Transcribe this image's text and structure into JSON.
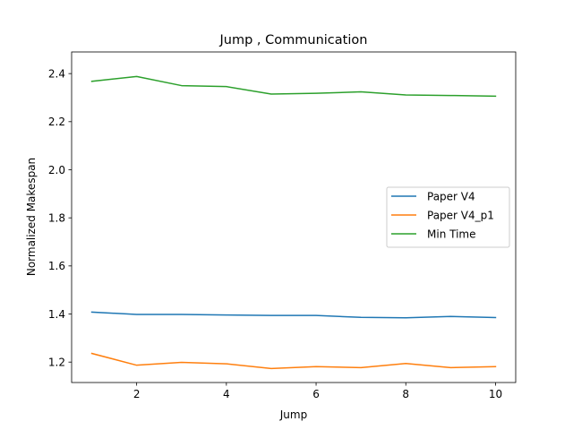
{
  "chart_data": {
    "type": "line",
    "title": "Jump , Communication",
    "xlabel": "Jump",
    "ylabel": "Normalized Makespan",
    "x": [
      1,
      2,
      3,
      4,
      5,
      6,
      7,
      8,
      9,
      10
    ],
    "xlim": [
      0.55,
      10.45
    ],
    "ylim": [
      1.115,
      2.49
    ],
    "xticks": [
      2,
      4,
      6,
      8,
      10
    ],
    "yticks": [
      1.2,
      1.4,
      1.6,
      1.8,
      2.0,
      2.2,
      2.4
    ],
    "xtick_labels": [
      "2",
      "4",
      "6",
      "8",
      "10"
    ],
    "ytick_labels": [
      "1.2",
      "1.4",
      "1.6",
      "1.8",
      "2.0",
      "2.2",
      "2.4"
    ],
    "grid": false,
    "legend_position": "center-right",
    "series": [
      {
        "name": "Paper V4",
        "color": "#1f77b4",
        "values": [
          1.408,
          1.398,
          1.398,
          1.396,
          1.394,
          1.394,
          1.386,
          1.384,
          1.39,
          1.385
        ]
      },
      {
        "name": "Paper V4_p1",
        "color": "#ff7f0e",
        "values": [
          1.236,
          1.187,
          1.199,
          1.193,
          1.173,
          1.181,
          1.177,
          1.194,
          1.177,
          1.181
        ]
      },
      {
        "name": "Min Time",
        "color": "#2ca02c",
        "values": [
          2.368,
          2.388,
          2.35,
          2.346,
          2.315,
          2.318,
          2.324,
          2.311,
          2.309,
          2.306
        ]
      }
    ]
  }
}
